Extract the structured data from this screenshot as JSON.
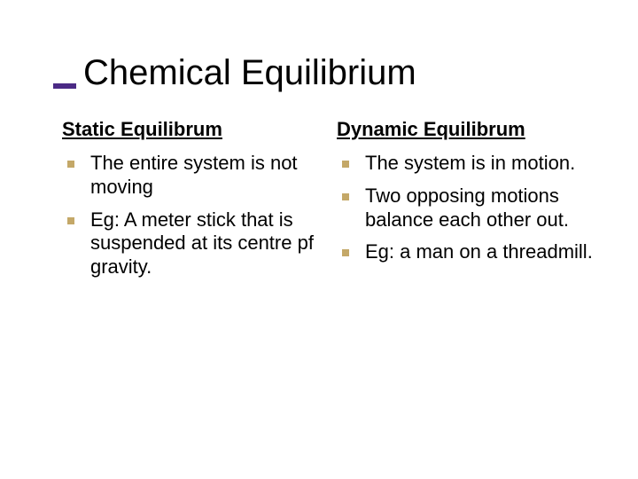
{
  "colors": {
    "background": "#ffffff",
    "text": "#000000",
    "title_bar": "#4b2a85",
    "bullet": "#c4a868"
  },
  "typography": {
    "title_fontsize": 40,
    "heading_fontsize": 22,
    "body_fontsize": 22,
    "font_family": "Verdana"
  },
  "title": "Chemical Equilibrium",
  "left": {
    "heading": "Static Equilibrum",
    "items": [
      "The entire system is not moving",
      "Eg: A meter stick that is suspended at its centre pf gravity."
    ]
  },
  "right": {
    "heading": "Dynamic Equilibrum",
    "items": [
      "The system is in motion.",
      "Two opposing motions balance each other out.",
      "Eg: a man on a threadmill."
    ]
  }
}
